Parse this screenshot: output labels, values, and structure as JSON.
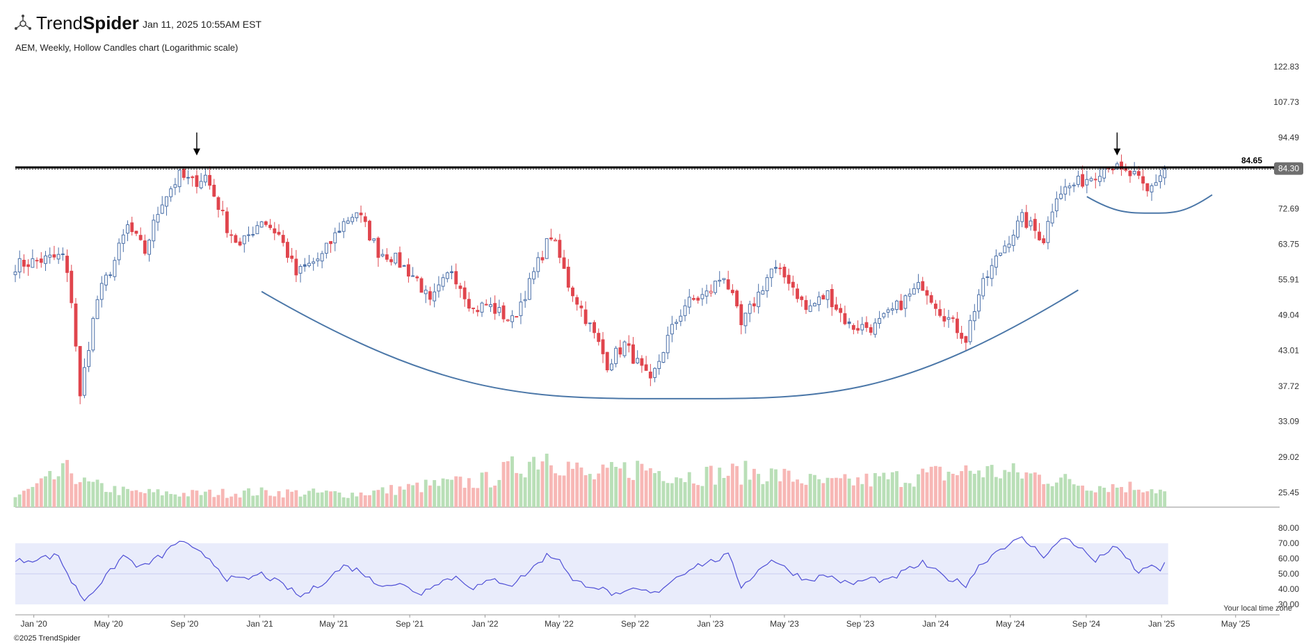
{
  "header": {
    "brand_light": "Trend",
    "brand_bold": "Spider",
    "brand_full": "TrendSpider",
    "timestamp": "Jan 11, 2025 10:55AM EST",
    "subtitle": "AEM, Weekly, Hollow Candles chart (Logarithmic scale)"
  },
  "footer": {
    "copyright": "©2025 TrendSpider",
    "timezone_note": "Your local time zone"
  },
  "colors": {
    "up": "#4a6fa8",
    "down": "#e0454d",
    "vol_up": "#b9dfb7",
    "vol_down": "#f7b7b5",
    "rsi_line": "#4f4fd6",
    "rsi_band": "#e9ecfb",
    "curve": "#4b77a8",
    "resistance": "#000000",
    "price_tag_bg": "#6f6f6f"
  },
  "chart_data": {
    "type": "candlestick",
    "symbol": "AEM",
    "interval": "Weekly",
    "scale": "log",
    "y_ticks": [
      "122.83",
      "107.73",
      "94.49",
      "84.30",
      "72.69",
      "63.75",
      "55.91",
      "49.04",
      "43.01",
      "37.72",
      "33.09",
      "29.02",
      "25.45"
    ],
    "y_range": [
      23.5,
      128
    ],
    "x_ticks": [
      "Jan '20",
      "May '20",
      "Sep '20",
      "Jan '21",
      "May '21",
      "Sep '21",
      "Jan '22",
      "May '22",
      "Sep '22",
      "Jan '23",
      "May '23",
      "Sep '23",
      "Jan '24",
      "May '24",
      "Sep '24",
      "Jan '25",
      "May '25"
    ],
    "x_range": [
      "2019-12-02",
      "2025-06-30"
    ],
    "resistance_level": 84.65,
    "resistance_label": "84.65",
    "last_price": 84.3,
    "last_price_label": "84.30",
    "close_anchors": [
      [
        "2019-12-02",
        59
      ],
      [
        "2020-02-17",
        61
      ],
      [
        "2020-03-02",
        52
      ],
      [
        "2020-03-16",
        36
      ],
      [
        "2020-03-23",
        40
      ],
      [
        "2020-04-13",
        52
      ],
      [
        "2020-05-11",
        60
      ],
      [
        "2020-06-01",
        68
      ],
      [
        "2020-06-29",
        62
      ],
      [
        "2020-07-27",
        75
      ],
      [
        "2020-08-24",
        82
      ],
      [
        "2020-09-14",
        80
      ],
      [
        "2020-10-05",
        82
      ],
      [
        "2020-11-09",
        68
      ],
      [
        "2020-11-30",
        63
      ],
      [
        "2021-01-04",
        70
      ],
      [
        "2021-02-01",
        66
      ],
      [
        "2021-03-01",
        57
      ],
      [
        "2021-04-12",
        61
      ],
      [
        "2021-05-17",
        69
      ],
      [
        "2021-06-07",
        72
      ],
      [
        "2021-07-12",
        62
      ],
      [
        "2021-08-02",
        61
      ],
      [
        "2021-09-13",
        56
      ],
      [
        "2021-10-04",
        51
      ],
      [
        "2021-11-08",
        58
      ],
      [
        "2021-12-13",
        50
      ],
      [
        "2022-01-03",
        51
      ],
      [
        "2022-02-14",
        48
      ],
      [
        "2022-03-14",
        55
      ],
      [
        "2022-04-18",
        66
      ],
      [
        "2022-05-16",
        55
      ],
      [
        "2022-06-20",
        47
      ],
      [
        "2022-07-18",
        41
      ],
      [
        "2022-08-15",
        44
      ],
      [
        "2022-09-26",
        38
      ],
      [
        "2022-10-24",
        45
      ],
      [
        "2022-11-21",
        51
      ],
      [
        "2022-12-26",
        53
      ],
      [
        "2023-01-23",
        57
      ],
      [
        "2023-02-20",
        47
      ],
      [
        "2023-03-20",
        53
      ],
      [
        "2023-04-10",
        58
      ],
      [
        "2023-05-08",
        56
      ],
      [
        "2023-06-05",
        50
      ],
      [
        "2023-07-10",
        53
      ],
      [
        "2023-08-14",
        47
      ],
      [
        "2023-09-25",
        47
      ],
      [
        "2023-10-16",
        49
      ],
      [
        "2023-11-13",
        52
      ],
      [
        "2023-12-11",
        55
      ],
      [
        "2024-01-08",
        50
      ],
      [
        "2024-02-19",
        45
      ],
      [
        "2024-03-11",
        53
      ],
      [
        "2024-04-15",
        62
      ],
      [
        "2024-05-20",
        70
      ],
      [
        "2024-06-24",
        65
      ],
      [
        "2024-07-15",
        77
      ],
      [
        "2024-08-19",
        80
      ],
      [
        "2024-09-09",
        82
      ],
      [
        "2024-10-07",
        86
      ],
      [
        "2024-10-28",
        83
      ],
      [
        "2024-11-18",
        82
      ],
      [
        "2024-12-09",
        77
      ],
      [
        "2025-01-06",
        84.3
      ]
    ],
    "volume_anchors": [
      [
        "2019-12-02",
        0.12
      ],
      [
        "2020-03-02",
        0.45
      ],
      [
        "2020-03-23",
        0.28
      ],
      [
        "2020-06-01",
        0.18
      ],
      [
        "2020-09-07",
        0.16
      ],
      [
        "2021-01-04",
        0.18
      ],
      [
        "2021-06-07",
        0.16
      ],
      [
        "2021-10-04",
        0.26
      ],
      [
        "2022-01-03",
        0.32
      ],
      [
        "2022-04-11",
        0.65
      ],
      [
        "2022-06-20",
        0.35
      ],
      [
        "2022-09-05",
        0.48
      ],
      [
        "2022-11-21",
        0.38
      ],
      [
        "2023-03-20",
        0.42
      ],
      [
        "2023-07-10",
        0.28
      ],
      [
        "2023-11-13",
        0.36
      ],
      [
        "2024-03-11",
        0.44
      ],
      [
        "2024-06-10",
        0.38
      ],
      [
        "2024-09-09",
        0.26
      ],
      [
        "2024-12-09",
        0.24
      ],
      [
        "2025-01-06",
        0.18
      ]
    ],
    "rsi": {
      "y_ticks": [
        "80.00",
        "70.00",
        "60.00",
        "50.00",
        "40.00",
        "30.00"
      ],
      "y_range": [
        30,
        80
      ],
      "overbought": 70,
      "oversold": 30,
      "anchors": [
        [
          "2019-12-02",
          58
        ],
        [
          "2020-02-10",
          62
        ],
        [
          "2020-03-02",
          45
        ],
        [
          "2020-03-23",
          33
        ],
        [
          "2020-04-27",
          48
        ],
        [
          "2020-05-25",
          62
        ],
        [
          "2020-06-22",
          54
        ],
        [
          "2020-07-27",
          62
        ],
        [
          "2020-08-24",
          72
        ],
        [
          "2020-09-14",
          66
        ],
        [
          "2020-10-12",
          60
        ],
        [
          "2020-11-09",
          47
        ],
        [
          "2020-12-07",
          46
        ],
        [
          "2021-01-04",
          50
        ],
        [
          "2021-02-15",
          41
        ],
        [
          "2021-03-08",
          35
        ],
        [
          "2021-04-05",
          42
        ],
        [
          "2021-05-17",
          55
        ],
        [
          "2021-06-14",
          52
        ],
        [
          "2021-07-05",
          44
        ],
        [
          "2021-08-16",
          43
        ],
        [
          "2021-09-20",
          37
        ],
        [
          "2021-10-11",
          44
        ],
        [
          "2021-11-15",
          48
        ],
        [
          "2021-12-13",
          41
        ],
        [
          "2022-01-17",
          46
        ],
        [
          "2022-02-14",
          43
        ],
        [
          "2022-03-14",
          52
        ],
        [
          "2022-04-11",
          62
        ],
        [
          "2022-05-02",
          60
        ],
        [
          "2022-05-23",
          45
        ],
        [
          "2022-06-27",
          42
        ],
        [
          "2022-08-08",
          35
        ],
        [
          "2022-08-29",
          40
        ],
        [
          "2022-10-03",
          37
        ],
        [
          "2022-10-31",
          46
        ],
        [
          "2022-12-05",
          55
        ],
        [
          "2023-01-02",
          58
        ],
        [
          "2023-01-30",
          62
        ],
        [
          "2023-02-20",
          42
        ],
        [
          "2023-03-20",
          52
        ],
        [
          "2023-04-10",
          60
        ],
        [
          "2023-05-01",
          54
        ],
        [
          "2023-06-05",
          46
        ],
        [
          "2023-07-10",
          49
        ],
        [
          "2023-08-14",
          43
        ],
        [
          "2023-09-18",
          47
        ],
        [
          "2023-10-16",
          45
        ],
        [
          "2023-11-13",
          52
        ],
        [
          "2023-12-11",
          57
        ],
        [
          "2024-01-15",
          48
        ],
        [
          "2024-02-19",
          43
        ],
        [
          "2024-03-11",
          55
        ],
        [
          "2024-04-15",
          67
        ],
        [
          "2024-05-20",
          73
        ],
        [
          "2024-06-24",
          62
        ],
        [
          "2024-07-29",
          74
        ],
        [
          "2024-08-19",
          68
        ],
        [
          "2024-09-16",
          58
        ],
        [
          "2024-10-14",
          68
        ],
        [
          "2024-11-11",
          58
        ],
        [
          "2024-11-25",
          50
        ],
        [
          "2024-12-16",
          57
        ],
        [
          "2024-12-30",
          50
        ],
        [
          "2025-01-06",
          58
        ]
      ]
    }
  },
  "annotations": {
    "cup_main": {
      "from": "2021-01-04",
      "to": "2024-08-19",
      "start_price": 53.5,
      "bottom_date": "2022-11-14",
      "bottom_price": 36.0,
      "end_price": 53.8
    },
    "handle": {
      "from": "2024-09-02",
      "to": "2025-03-24",
      "start_price": 76.0,
      "bottom_date": "2024-12-16",
      "bottom_price": 71.5,
      "end_price": 76.5
    },
    "arrows": [
      {
        "date": "2020-09-21",
        "price": 88.5
      },
      {
        "date": "2024-10-21",
        "price": 88.5
      }
    ]
  }
}
